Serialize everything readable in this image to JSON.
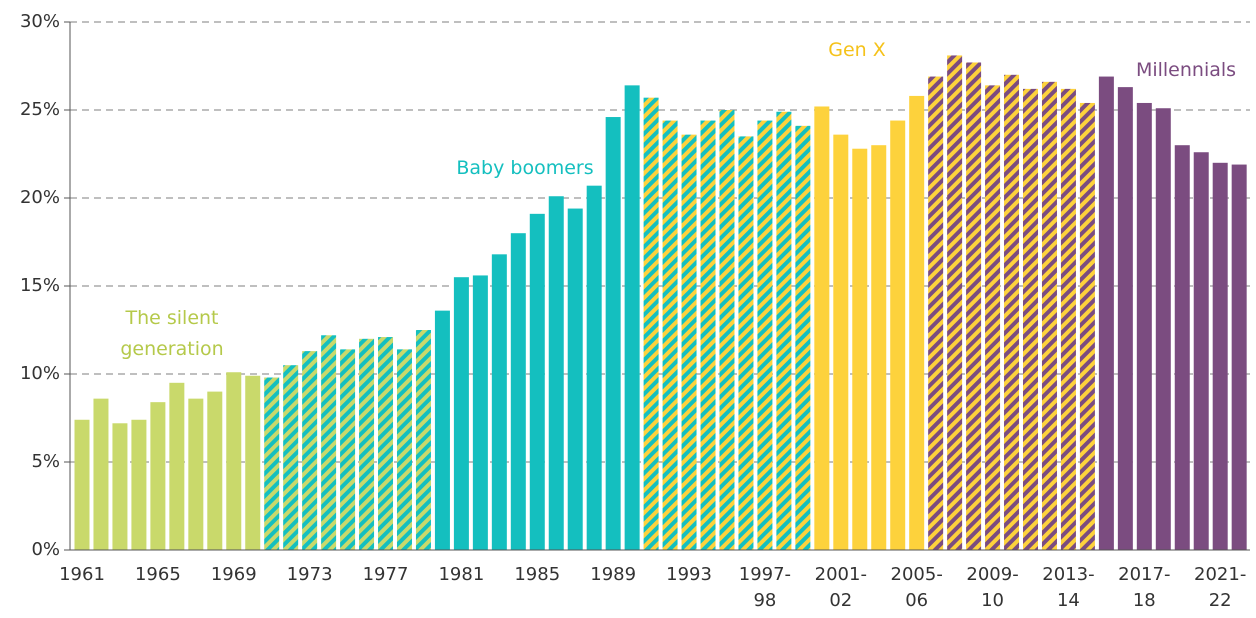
{
  "chart_data": {
    "type": "bar",
    "categories": [
      "1961",
      null,
      null,
      null,
      "1965",
      null,
      null,
      null,
      "1969",
      null,
      null,
      null,
      "1973",
      null,
      null,
      null,
      "1977",
      null,
      null,
      null,
      "1981",
      null,
      null,
      null,
      "1985",
      null,
      null,
      null,
      "1989",
      null,
      null,
      null,
      "1993",
      null,
      null,
      null,
      "1997-\n98",
      null,
      null,
      null,
      "2001-\n02",
      null,
      null,
      null,
      "2005-\n06",
      null,
      null,
      null,
      "2009-\n10",
      null,
      null,
      null,
      "2013-\n14",
      null,
      null,
      null,
      "2017-\n18",
      null,
      null,
      null,
      "2021-\n22",
      null
    ],
    "values": [
      7.4,
      8.6,
      7.2,
      7.4,
      8.4,
      9.5,
      8.6,
      9.0,
      10.1,
      9.9,
      9.8,
      10.5,
      11.3,
      12.2,
      11.4,
      12.0,
      12.1,
      11.4,
      12.5,
      13.6,
      15.5,
      15.6,
      16.8,
      18.0,
      19.1,
      20.1,
      19.4,
      20.7,
      24.6,
      26.4,
      25.7,
      24.4,
      23.6,
      24.4,
      25.0,
      23.5,
      24.4,
      24.9,
      24.1,
      25.2,
      23.6,
      22.8,
      23.0,
      24.4,
      25.8,
      26.9,
      28.1,
      27.7,
      26.4,
      27.0,
      26.2,
      26.6,
      26.2,
      25.4,
      26.9,
      26.3,
      25.4,
      25.1,
      23.0,
      22.6,
      22.0,
      21.9
    ],
    "bar_colors": [
      "#c9d96b",
      "#c9d96b",
      "#c9d96b",
      "#c9d96b",
      "#c9d96b",
      "#c9d96b",
      "#c9d96b",
      "#c9d96b",
      "#c9d96b",
      "#c9d96b",
      "#c9d96b",
      "#c9d96b",
      "#c9d96b",
      "#c9d96b",
      "#c9d96b",
      "#c9d96b",
      "#c9d96b",
      "#c9d96b",
      "#c9d96b",
      "#14bfbf",
      "#14bfbf",
      "#14bfbf",
      "#14bfbf",
      "#14bfbf",
      "#14bfbf",
      "#14bfbf",
      "#14bfbf",
      "#14bfbf",
      "#14bfbf",
      "#14bfbf",
      "#14bfbf",
      "#14bfbf",
      "#14bfbf",
      "#14bfbf",
      "#14bfbf",
      "#14bfbf",
      "#14bfbf",
      "#14bfbf",
      "#14bfbf",
      "#fdd23c",
      "#fdd23c",
      "#fdd23c",
      "#fdd23c",
      "#fdd23c",
      "#fdd23c",
      "#fdd23c",
      "#fdd23c",
      "#fdd23c",
      "#fdd23c",
      "#fdd23c",
      "#fdd23c",
      "#fdd23c",
      "#fdd23c",
      "#fdd23c",
      "#7b4c80",
      "#7b4c80",
      "#7b4c80",
      "#7b4c80",
      "#7b4c80",
      "#7b4c80",
      "#7b4c80",
      "#7b4c80"
    ],
    "bar_stripes": [
      null,
      null,
      null,
      null,
      null,
      null,
      null,
      null,
      null,
      null,
      "#14bfbf",
      "#14bfbf",
      "#14bfbf",
      "#14bfbf",
      "#14bfbf",
      "#14bfbf",
      "#14bfbf",
      "#14bfbf",
      "#14bfbf",
      null,
      null,
      null,
      null,
      null,
      null,
      null,
      null,
      null,
      null,
      null,
      "#fdd23c",
      "#fdd23c",
      "#fdd23c",
      "#fdd23c",
      "#fdd23c",
      "#fdd23c",
      "#fdd23c",
      "#fdd23c",
      "#fdd23c",
      null,
      null,
      null,
      null,
      null,
      null,
      "#7b4c80",
      "#7b4c80",
      "#7b4c80",
      "#7b4c80",
      "#7b4c80",
      "#7b4c80",
      "#7b4c80",
      "#7b4c80",
      "#7b4c80",
      null,
      null,
      null,
      null,
      null,
      null,
      null,
      null
    ],
    "annotations": [
      {
        "text": "The silent\ngeneration",
        "color": "#b5c94a"
      },
      {
        "text": "Baby boomers",
        "color": "#14bfbf"
      },
      {
        "text": "Gen X",
        "color": "#f5c21a"
      },
      {
        "text": "Millennials",
        "color": "#7b4c80"
      }
    ],
    "ylim": [
      0,
      30
    ],
    "yticks": [
      {
        "value": 0,
        "label": "0%"
      },
      {
        "value": 5,
        "label": "5%"
      },
      {
        "value": 10,
        "label": "10%"
      },
      {
        "value": 15,
        "label": "15%"
      },
      {
        "value": 20,
        "label": "20%"
      },
      {
        "value": 25,
        "label": "25%"
      },
      {
        "value": 30,
        "label": "30%"
      }
    ],
    "grid": true
  }
}
